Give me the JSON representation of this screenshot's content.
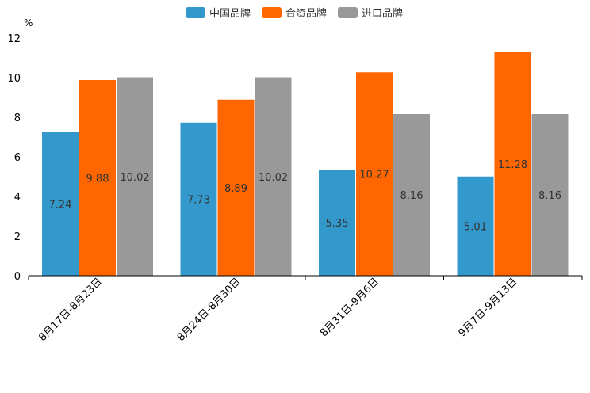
{
  "chart_data": {
    "type": "bar",
    "title": "",
    "ylabel": "%",
    "xlabel": "",
    "ylim": [
      0,
      12
    ],
    "yticks": [
      0,
      2,
      4,
      6,
      8,
      10,
      12
    ],
    "categories": [
      "8月17日-8月23日",
      "8月24日-8月30日",
      "8月31日-9月6日",
      "9月7日-9月13日"
    ],
    "series": [
      {
        "name": "中国品牌",
        "color": "#3399CC",
        "values": [
          7.24,
          7.73,
          5.35,
          5.01
        ]
      },
      {
        "name": "合资品牌",
        "color": "#FF6600",
        "values": [
          9.88,
          8.89,
          10.27,
          11.28
        ]
      },
      {
        "name": "进口品牌",
        "color": "#999999",
        "values": [
          10.02,
          10.02,
          8.16,
          8.16
        ]
      }
    ],
    "legend_position": "top-center",
    "grid": false
  }
}
